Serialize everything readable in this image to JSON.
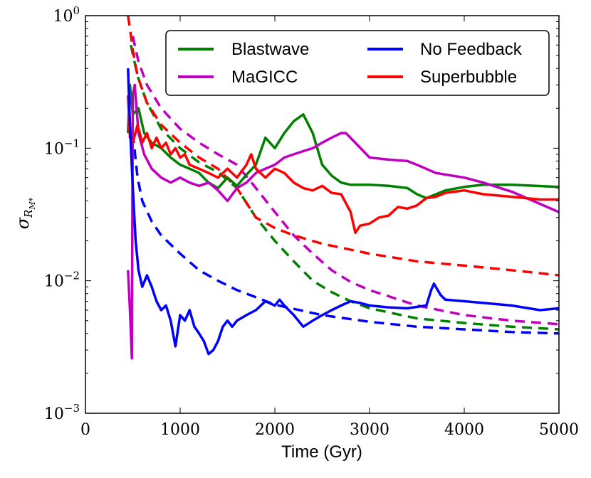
{
  "chart_data": {
    "type": "line",
    "xlabel": "Time (Gyr)",
    "ylabel_base": "σ",
    "ylabel_sub": "R",
    "ylabel_subsub": "M*",
    "xlim": [
      0,
      5000
    ],
    "ylim": [
      0.001,
      1
    ],
    "yscale": "log",
    "x_ticks": [
      0,
      1000,
      2000,
      3000,
      4000,
      5000
    ],
    "x_tick_labels": [
      "0",
      "1000",
      "2000",
      "3000",
      "4000",
      "5000"
    ],
    "y_ticks": [
      0.001,
      0.01,
      0.1,
      1
    ],
    "y_tick_labels": [
      {
        "base": "10",
        "exp": "−3"
      },
      {
        "base": "10",
        "exp": "−2"
      },
      {
        "base": "10",
        "exp": "−1"
      },
      {
        "base": "10",
        "exp": "0"
      }
    ],
    "legend_position": "upper-right",
    "series": [
      {
        "name": "Blastwave",
        "color": "#008000",
        "style": "solid",
        "points": [
          [
            450,
            0.13
          ],
          [
            470,
            0.3
          ],
          [
            500,
            0.18
          ],
          [
            560,
            0.2
          ],
          [
            620,
            0.13
          ],
          [
            700,
            0.11
          ],
          [
            800,
            0.1
          ],
          [
            900,
            0.085
          ],
          [
            1000,
            0.075
          ],
          [
            1100,
            0.07
          ],
          [
            1200,
            0.065
          ],
          [
            1300,
            0.055
          ],
          [
            1400,
            0.05
          ],
          [
            1500,
            0.06
          ],
          [
            1600,
            0.052
          ],
          [
            1700,
            0.063
          ],
          [
            1800,
            0.075
          ],
          [
            1900,
            0.12
          ],
          [
            2000,
            0.1
          ],
          [
            2100,
            0.13
          ],
          [
            2200,
            0.16
          ],
          [
            2300,
            0.18
          ],
          [
            2400,
            0.13
          ],
          [
            2500,
            0.075
          ],
          [
            2600,
            0.062
          ],
          [
            2700,
            0.055
          ],
          [
            2800,
            0.053
          ],
          [
            3000,
            0.053
          ],
          [
            3200,
            0.052
          ],
          [
            3400,
            0.05
          ],
          [
            3500,
            0.045
          ],
          [
            3600,
            0.042
          ],
          [
            3800,
            0.048
          ],
          [
            4000,
            0.051
          ],
          [
            4200,
            0.053
          ],
          [
            4500,
            0.053
          ],
          [
            5000,
            0.051
          ]
        ]
      },
      {
        "name": "Blastwave model",
        "color": "#008000",
        "style": "dashed",
        "points": [
          [
            480,
            0.6
          ],
          [
            550,
            0.35
          ],
          [
            650,
            0.22
          ],
          [
            800,
            0.14
          ],
          [
            1000,
            0.1
          ],
          [
            1200,
            0.078
          ],
          [
            1400,
            0.066
          ],
          [
            1600,
            0.05
          ],
          [
            1800,
            0.03
          ],
          [
            2000,
            0.02
          ],
          [
            2200,
            0.014
          ],
          [
            2400,
            0.01
          ],
          [
            2600,
            0.0082
          ],
          [
            2800,
            0.007
          ],
          [
            3000,
            0.0062
          ],
          [
            3500,
            0.0052
          ],
          [
            4000,
            0.0048
          ],
          [
            4500,
            0.0045
          ],
          [
            5000,
            0.0043
          ]
        ]
      },
      {
        "name": "MaGICC",
        "color": "#bf00bf",
        "style": "solid",
        "points": [
          [
            450,
            0.012
          ],
          [
            470,
            0.006
          ],
          [
            490,
            0.0026
          ],
          [
            500,
            0.25
          ],
          [
            520,
            0.3
          ],
          [
            560,
            0.13
          ],
          [
            620,
            0.09
          ],
          [
            700,
            0.07
          ],
          [
            800,
            0.06
          ],
          [
            900,
            0.055
          ],
          [
            1000,
            0.06
          ],
          [
            1100,
            0.055
          ],
          [
            1200,
            0.052
          ],
          [
            1300,
            0.055
          ],
          [
            1400,
            0.048
          ],
          [
            1500,
            0.04
          ],
          [
            1600,
            0.05
          ],
          [
            1700,
            0.055
          ],
          [
            1800,
            0.065
          ],
          [
            1900,
            0.07
          ],
          [
            2000,
            0.075
          ],
          [
            2100,
            0.085
          ],
          [
            2200,
            0.09
          ],
          [
            2300,
            0.095
          ],
          [
            2400,
            0.1
          ],
          [
            2500,
            0.11
          ],
          [
            2600,
            0.12
          ],
          [
            2700,
            0.13
          ],
          [
            2750,
            0.13
          ],
          [
            2850,
            0.11
          ],
          [
            3000,
            0.085
          ],
          [
            3200,
            0.082
          ],
          [
            3400,
            0.08
          ],
          [
            3500,
            0.075
          ],
          [
            3700,
            0.065
          ],
          [
            4000,
            0.06
          ],
          [
            4200,
            0.055
          ],
          [
            4500,
            0.047
          ],
          [
            4800,
            0.038
          ],
          [
            5000,
            0.033
          ]
        ]
      },
      {
        "name": "MaGICC model",
        "color": "#bf00bf",
        "style": "dashed",
        "points": [
          [
            500,
            0.7
          ],
          [
            560,
            0.45
          ],
          [
            650,
            0.3
          ],
          [
            800,
            0.2
          ],
          [
            1000,
            0.14
          ],
          [
            1200,
            0.11
          ],
          [
            1400,
            0.09
          ],
          [
            1600,
            0.075
          ],
          [
            1800,
            0.05
          ],
          [
            2000,
            0.033
          ],
          [
            2200,
            0.022
          ],
          [
            2400,
            0.016
          ],
          [
            2600,
            0.012
          ],
          [
            2800,
            0.0098
          ],
          [
            3000,
            0.0085
          ],
          [
            3500,
            0.0065
          ],
          [
            4000,
            0.0055
          ],
          [
            4500,
            0.005
          ],
          [
            5000,
            0.0047
          ]
        ]
      },
      {
        "name": "No Feedback",
        "color": "#0000ff",
        "style": "solid",
        "points": [
          [
            450,
            0.4
          ],
          [
            470,
            0.15
          ],
          [
            500,
            0.05
          ],
          [
            530,
            0.02
          ],
          [
            560,
            0.012
          ],
          [
            600,
            0.009
          ],
          [
            650,
            0.011
          ],
          [
            700,
            0.009
          ],
          [
            750,
            0.007
          ],
          [
            800,
            0.006
          ],
          [
            850,
            0.0065
          ],
          [
            900,
            0.005
          ],
          [
            950,
            0.0032
          ],
          [
            1000,
            0.0055
          ],
          [
            1050,
            0.005
          ],
          [
            1100,
            0.006
          ],
          [
            1150,
            0.0045
          ],
          [
            1200,
            0.004
          ],
          [
            1250,
            0.0035
          ],
          [
            1300,
            0.0028
          ],
          [
            1350,
            0.003
          ],
          [
            1400,
            0.0035
          ],
          [
            1450,
            0.0045
          ],
          [
            1500,
            0.005
          ],
          [
            1550,
            0.0045
          ],
          [
            1600,
            0.005
          ],
          [
            1700,
            0.0055
          ],
          [
            1800,
            0.006
          ],
          [
            1900,
            0.007
          ],
          [
            2000,
            0.0065
          ],
          [
            2050,
            0.0072
          ],
          [
            2100,
            0.0065
          ],
          [
            2200,
            0.0055
          ],
          [
            2300,
            0.0045
          ],
          [
            2400,
            0.005
          ],
          [
            2500,
            0.0055
          ],
          [
            2600,
            0.006
          ],
          [
            2700,
            0.0065
          ],
          [
            2800,
            0.007
          ],
          [
            2900,
            0.0068
          ],
          [
            3000,
            0.0065
          ],
          [
            3200,
            0.0063
          ],
          [
            3400,
            0.0062
          ],
          [
            3600,
            0.0065
          ],
          [
            3650,
            0.0085
          ],
          [
            3680,
            0.0095
          ],
          [
            3750,
            0.0078
          ],
          [
            3800,
            0.0072
          ],
          [
            4000,
            0.007
          ],
          [
            4200,
            0.0068
          ],
          [
            4500,
            0.0065
          ],
          [
            4800,
            0.006
          ],
          [
            5000,
            0.0062
          ]
        ]
      },
      {
        "name": "No Feedback model",
        "color": "#0000ff",
        "style": "dashed",
        "points": [
          [
            500,
            0.13
          ],
          [
            550,
            0.06
          ],
          [
            600,
            0.04
          ],
          [
            700,
            0.028
          ],
          [
            800,
            0.022
          ],
          [
            1000,
            0.016
          ],
          [
            1200,
            0.012
          ],
          [
            1400,
            0.01
          ],
          [
            1600,
            0.0085
          ],
          [
            1800,
            0.0075
          ],
          [
            2000,
            0.0066
          ],
          [
            2500,
            0.0055
          ],
          [
            3000,
            0.0049
          ],
          [
            3500,
            0.0045
          ],
          [
            4000,
            0.0043
          ],
          [
            4500,
            0.0041
          ],
          [
            5000,
            0.004
          ]
        ]
      },
      {
        "name": "Superbubble",
        "color": "#ff0000",
        "style": "solid",
        "points": [
          [
            450,
            0.25
          ],
          [
            470,
            0.12
          ],
          [
            500,
            0.11
          ],
          [
            550,
            0.15
          ],
          [
            600,
            0.11
          ],
          [
            650,
            0.13
          ],
          [
            700,
            0.1
          ],
          [
            750,
            0.12
          ],
          [
            800,
            0.1
          ],
          [
            850,
            0.11
          ],
          [
            900,
            0.09
          ],
          [
            950,
            0.1
          ],
          [
            1000,
            0.085
          ],
          [
            1050,
            0.09
          ],
          [
            1100,
            0.075
          ],
          [
            1200,
            0.07
          ],
          [
            1300,
            0.065
          ],
          [
            1400,
            0.06
          ],
          [
            1500,
            0.07
          ],
          [
            1600,
            0.06
          ],
          [
            1700,
            0.075
          ],
          [
            1750,
            0.09
          ],
          [
            1800,
            0.07
          ],
          [
            1900,
            0.06
          ],
          [
            2000,
            0.07
          ],
          [
            2100,
            0.065
          ],
          [
            2200,
            0.055
          ],
          [
            2300,
            0.05
          ],
          [
            2400,
            0.048
          ],
          [
            2500,
            0.052
          ],
          [
            2600,
            0.046
          ],
          [
            2700,
            0.045
          ],
          [
            2800,
            0.033
          ],
          [
            2850,
            0.023
          ],
          [
            2900,
            0.026
          ],
          [
            3000,
            0.027
          ],
          [
            3100,
            0.03
          ],
          [
            3200,
            0.031
          ],
          [
            3300,
            0.036
          ],
          [
            3400,
            0.035
          ],
          [
            3500,
            0.037
          ],
          [
            3600,
            0.042
          ],
          [
            3700,
            0.043
          ],
          [
            3800,
            0.046
          ],
          [
            4000,
            0.048
          ],
          [
            4200,
            0.045
          ],
          [
            4500,
            0.043
          ],
          [
            4800,
            0.041
          ],
          [
            5000,
            0.041
          ]
        ]
      },
      {
        "name": "Superbubble model",
        "color": "#ff0000",
        "style": "dashed",
        "points": [
          [
            450,
            1.0
          ],
          [
            470,
            0.8
          ],
          [
            500,
            0.55
          ],
          [
            550,
            0.35
          ],
          [
            650,
            0.22
          ],
          [
            800,
            0.15
          ],
          [
            1000,
            0.11
          ],
          [
            1200,
            0.085
          ],
          [
            1400,
            0.07
          ],
          [
            1600,
            0.05
          ],
          [
            1800,
            0.03
          ],
          [
            2000,
            0.025
          ],
          [
            2200,
            0.022
          ],
          [
            2500,
            0.019
          ],
          [
            3000,
            0.016
          ],
          [
            3500,
            0.014
          ],
          [
            4000,
            0.013
          ],
          [
            4500,
            0.012
          ],
          [
            5000,
            0.011
          ]
        ]
      }
    ],
    "legend": [
      {
        "label": "Blastwave",
        "color": "#008000"
      },
      {
        "label": "MaGICC",
        "color": "#bf00bf"
      },
      {
        "label": "No Feedback",
        "color": "#0000ff"
      },
      {
        "label": "Superbubble",
        "color": "#ff0000"
      }
    ]
  }
}
